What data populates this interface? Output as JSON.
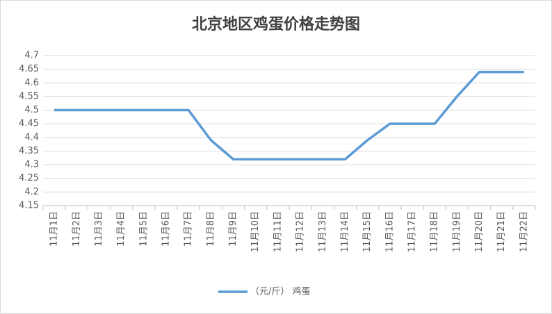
{
  "chart_data": {
    "type": "line",
    "title": "北京地区鸡蛋价格走势图",
    "categories": [
      "11月1日",
      "11月2日",
      "11月3日",
      "11月4日",
      "11月5日",
      "11月6日",
      "11月7日",
      "11月8日",
      "11月9日",
      "11月10日",
      "11月11日",
      "11月12日",
      "11月13日",
      "11月14日",
      "11月15日",
      "11月16日",
      "11月17日",
      "11月18日",
      "11月19日",
      "11月20日",
      "11月21日",
      "11月22日"
    ],
    "series": [
      {
        "name": "（元/斤） 鸡蛋",
        "color": "#5b9bd5",
        "values": [
          4.5,
          4.5,
          4.5,
          4.5,
          4.5,
          4.5,
          4.5,
          4.39,
          4.32,
          4.32,
          4.32,
          4.32,
          4.32,
          4.32,
          4.39,
          4.45,
          4.45,
          4.45,
          4.55,
          4.64,
          4.64,
          4.64
        ]
      }
    ],
    "ylim": [
      4.15,
      4.7
    ],
    "yticks": [
      4.15,
      4.2,
      4.25,
      4.3,
      4.35,
      4.4,
      4.45,
      4.5,
      4.55,
      4.6,
      4.65,
      4.7
    ],
    "grid": true,
    "legend": "bottom"
  }
}
